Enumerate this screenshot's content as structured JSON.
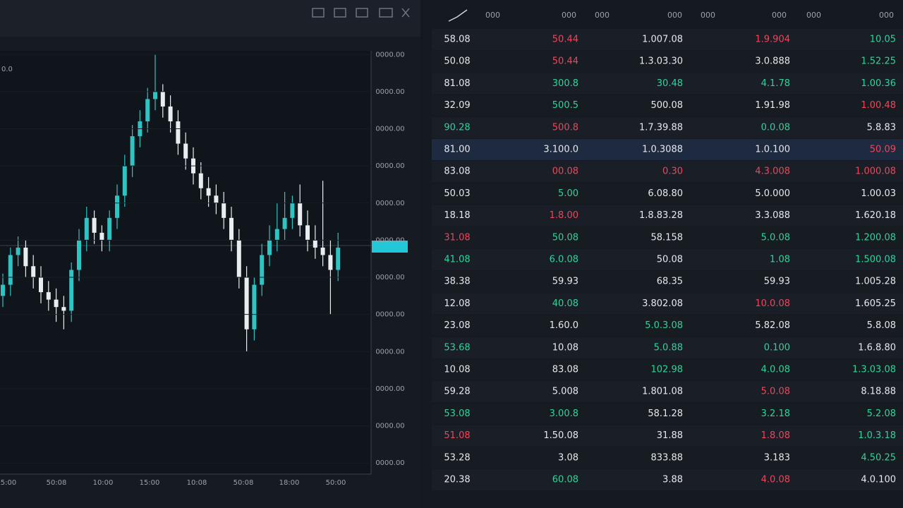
{
  "chart": {
    "type": "candlestick",
    "corner_label": "0.0",
    "yticks": [
      {
        "value": 110,
        "label": "0000.00"
      },
      {
        "value": 100,
        "label": "0000.00"
      },
      {
        "value": 90,
        "label": "0000.00"
      },
      {
        "value": 80,
        "label": "0000.00"
      },
      {
        "value": 70,
        "label": "0000.00"
      },
      {
        "value": 60,
        "label": "0000.00"
      },
      {
        "value": 50,
        "label": "0000.00"
      },
      {
        "value": 40,
        "label": "0000.00"
      },
      {
        "value": 30,
        "label": "0000.00"
      },
      {
        "value": 20,
        "label": "0000.00"
      },
      {
        "value": 10,
        "label": "0000.00"
      },
      {
        "value": 0,
        "label": "0000.00"
      }
    ],
    "ylim": [
      -3,
      111
    ],
    "xlabels": [
      "5:00",
      "50:08",
      "10:00",
      "15:00",
      "10:08",
      "50:08",
      "18:00",
      "50:00"
    ],
    "open": [
      45,
      48,
      56,
      58,
      53,
      50,
      46,
      44,
      42,
      41,
      52,
      60,
      66,
      62,
      60,
      66,
      72,
      80,
      88,
      92,
      98,
      100,
      96,
      92,
      86,
      82,
      78,
      74,
      72,
      70,
      66,
      60,
      50,
      36,
      48,
      56,
      60,
      63,
      66,
      70,
      64,
      60,
      58,
      56,
      52
    ],
    "high": [
      51,
      58,
      61,
      60,
      56,
      53,
      49,
      47,
      45,
      54,
      63,
      69,
      68,
      64,
      68,
      75,
      83,
      91,
      95,
      101,
      110,
      102,
      99,
      95,
      89,
      85,
      81,
      77,
      75,
      73,
      69,
      63,
      53,
      50,
      59,
      64,
      70,
      73,
      72,
      75,
      68,
      64,
      76,
      60,
      62
    ],
    "low": [
      42,
      45,
      53,
      50,
      47,
      43,
      41,
      38,
      36,
      38,
      49,
      57,
      59,
      57,
      57,
      63,
      69,
      77,
      85,
      89,
      95,
      93,
      89,
      83,
      79,
      75,
      71,
      69,
      67,
      63,
      57,
      47,
      30,
      33,
      45,
      53,
      57,
      60,
      63,
      61,
      57,
      55,
      53,
      40,
      49
    ],
    "close": [
      48,
      56,
      58,
      53,
      50,
      46,
      44,
      42,
      41,
      52,
      60,
      66,
      62,
      60,
      66,
      72,
      80,
      88,
      92,
      98,
      100,
      96,
      92,
      86,
      82,
      78,
      74,
      72,
      70,
      66,
      60,
      50,
      36,
      48,
      56,
      60,
      63,
      66,
      70,
      64,
      60,
      58,
      56,
      52,
      58
    ],
    "up_color": "#2ec4c4",
    "down_color": "#e8eef0"
  },
  "table": {
    "header": [
      "000",
      "000",
      "000",
      "000",
      "000",
      "000",
      "000",
      "000"
    ],
    "highlight_row": 5,
    "rows": [
      [
        [
          "58.08",
          "w"
        ],
        [
          "50.44",
          "r"
        ],
        [
          "1.007.08",
          "w"
        ],
        [
          "1.9.904",
          "r"
        ],
        [
          "10.05",
          "g"
        ]
      ],
      [
        [
          "50.08",
          "w"
        ],
        [
          "50.44",
          "r"
        ],
        [
          "1.3.03.30",
          "w"
        ],
        [
          "3.0.888",
          "w"
        ],
        [
          "1.52.25",
          "g"
        ]
      ],
      [
        [
          "81.08",
          "w"
        ],
        [
          "300.8",
          "g"
        ],
        [
          "30.48",
          "g"
        ],
        [
          "4.1.78",
          "g"
        ],
        [
          "1.00.36",
          "g"
        ]
      ],
      [
        [
          "32.09",
          "w"
        ],
        [
          "500.5",
          "g"
        ],
        [
          "500.08",
          "w"
        ],
        [
          "1.91.98",
          "w"
        ],
        [
          "1.00.48",
          "r"
        ]
      ],
      [
        [
          "90.28",
          "g"
        ],
        [
          "500.8",
          "r"
        ],
        [
          "1.7.39.88",
          "w"
        ],
        [
          "0.0.08",
          "g"
        ],
        [
          "5.8.83",
          "w"
        ]
      ],
      [
        [
          "81.00",
          "w"
        ],
        [
          "3.100.0",
          "w"
        ],
        [
          "1.0.3088",
          "w"
        ],
        [
          "1.0.100",
          "w"
        ],
        [
          "50.09",
          "r"
        ]
      ],
      [
        [
          "83.08",
          "w"
        ],
        [
          "00.08",
          "r"
        ],
        [
          "0.30",
          "r"
        ],
        [
          "4.3.008",
          "r"
        ],
        [
          "1.000.08",
          "r"
        ]
      ],
      [
        [
          "50.03",
          "w"
        ],
        [
          "5.00",
          "g"
        ],
        [
          "6.08.80",
          "w"
        ],
        [
          "5.0.000",
          "w"
        ],
        [
          "1.00.03",
          "w"
        ]
      ],
      [
        [
          "18.18",
          "w"
        ],
        [
          "1.8.00",
          "r"
        ],
        [
          "1.8.83.28",
          "w"
        ],
        [
          "3.3.088",
          "w"
        ],
        [
          "1.620.18",
          "w"
        ]
      ],
      [
        [
          "31.08",
          "r"
        ],
        [
          "50.08",
          "g"
        ],
        [
          "58.158",
          "w"
        ],
        [
          "5.0.08",
          "g"
        ],
        [
          "1.200.08",
          "g"
        ]
      ],
      [
        [
          "41.08",
          "g"
        ],
        [
          "6.0.08",
          "g"
        ],
        [
          "50.08",
          "w"
        ],
        [
          "1.08",
          "g"
        ],
        [
          "1.500.08",
          "g"
        ]
      ],
      [
        [
          "38.38",
          "w"
        ],
        [
          "59.93",
          "w"
        ],
        [
          "68.35",
          "w"
        ],
        [
          "59.93",
          "w"
        ],
        [
          "1.005.28",
          "w"
        ]
      ],
      [
        [
          "12.08",
          "w"
        ],
        [
          "40.08",
          "g"
        ],
        [
          "3.802.08",
          "w"
        ],
        [
          "10.0.08",
          "r"
        ],
        [
          "1.605.25",
          "w"
        ]
      ],
      [
        [
          "23.08",
          "w"
        ],
        [
          "1.60.0",
          "w"
        ],
        [
          "5.0.3.08",
          "g"
        ],
        [
          "5.82.08",
          "w"
        ],
        [
          "5.8.08",
          "w"
        ]
      ],
      [
        [
          "53.68",
          "g"
        ],
        [
          "10.08",
          "w"
        ],
        [
          "5.0.88",
          "g"
        ],
        [
          "0.100",
          "g"
        ],
        [
          "1.6.8.80",
          "w"
        ]
      ],
      [
        [
          "10.08",
          "w"
        ],
        [
          "83.08",
          "w"
        ],
        [
          "102.98",
          "g"
        ],
        [
          "4.0.08",
          "g"
        ],
        [
          "1.3.03.08",
          "g"
        ]
      ],
      [
        [
          "59.28",
          "w"
        ],
        [
          "5.008",
          "w"
        ],
        [
          "1.801.08",
          "w"
        ],
        [
          "5.0.08",
          "r"
        ],
        [
          "8.18.88",
          "w"
        ]
      ],
      [
        [
          "53.08",
          "g"
        ],
        [
          "3.00.8",
          "g"
        ],
        [
          "58.1.28",
          "w"
        ],
        [
          "3.2.18",
          "g"
        ],
        [
          "5.2.08",
          "g"
        ]
      ],
      [
        [
          "51.08",
          "r"
        ],
        [
          "1.50.08",
          "w"
        ],
        [
          "31.88",
          "w"
        ],
        [
          "1.8.08",
          "r"
        ],
        [
          "1.0.3.18",
          "g"
        ]
      ],
      [
        [
          "53.28",
          "w"
        ],
        [
          "3.08",
          "w"
        ],
        [
          "833.88",
          "w"
        ],
        [
          "3.183",
          "w"
        ],
        [
          "4.50.25",
          "g"
        ]
      ],
      [
        [
          "20.38",
          "w"
        ],
        [
          "60.08",
          "g"
        ],
        [
          "3.88",
          "w"
        ],
        [
          "4.0.08",
          "r"
        ],
        [
          "4.0.100",
          "w"
        ]
      ]
    ]
  }
}
